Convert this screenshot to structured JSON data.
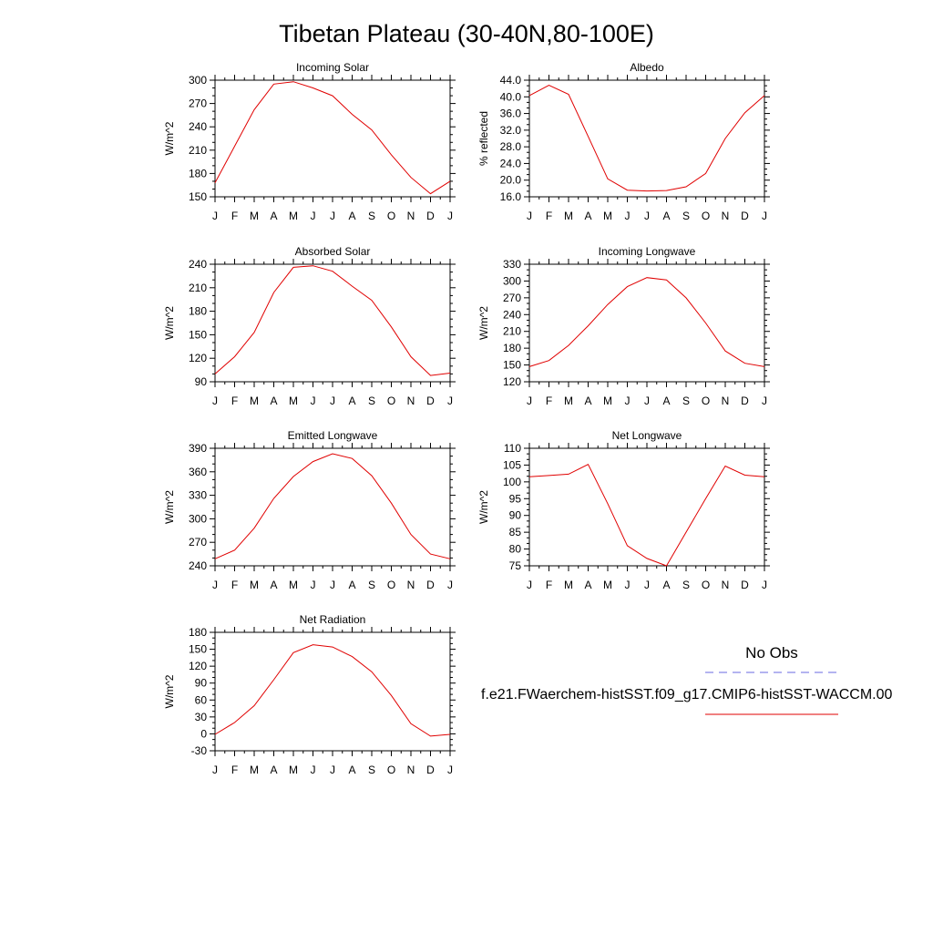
{
  "title": "Tibetan Plateau (30-40N,80-100E)",
  "months": [
    "J",
    "F",
    "M",
    "A",
    "M",
    "J",
    "J",
    "A",
    "S",
    "O",
    "N",
    "D",
    "J"
  ],
  "legend": {
    "obs_label": "No Obs",
    "model_label": "f.e21.FWaerchem-histSST.f09_g17.CMIP6-histSST-WACCM.00",
    "obs_color": "#6a6ae0",
    "model_color": "#e00000"
  },
  "chart_data": [
    {
      "type": "line",
      "title": "Incoming Solar",
      "ylabel": "W/m^2",
      "ylim": [
        150,
        300
      ],
      "yticks": [
        "150",
        "180",
        "210",
        "240",
        "270",
        "300"
      ],
      "series": [
        {
          "color": "#e00000",
          "values": [
            168,
            215,
            262,
            295,
            298,
            290,
            280,
            256,
            236,
            204,
            175,
            154,
            170
          ]
        }
      ]
    },
    {
      "type": "line",
      "title": "Albedo",
      "ylabel": "% reflected",
      "ylim": [
        16,
        44
      ],
      "yticks": [
        "16.0",
        "20.0",
        "24.0",
        "28.0",
        "32.0",
        "36.0",
        "40.0",
        "44.0"
      ],
      "series": [
        {
          "color": "#e00000",
          "values": [
            40.3,
            42.8,
            40.6,
            30.5,
            20.3,
            17.6,
            17.4,
            17.5,
            18.4,
            21.6,
            30.0,
            36.2,
            40.3
          ]
        }
      ]
    },
    {
      "type": "line",
      "title": "Absorbed Solar",
      "ylabel": "W/m^2",
      "ylim": [
        90,
        240
      ],
      "yticks": [
        "90",
        "120",
        "150",
        "180",
        "210",
        "240"
      ],
      "series": [
        {
          "color": "#e00000",
          "values": [
            100,
            122,
            153,
            204,
            236,
            238,
            231,
            212,
            194,
            160,
            122,
            98,
            101
          ]
        }
      ]
    },
    {
      "type": "line",
      "title": "Incoming Longwave",
      "ylabel": "W/m^2",
      "ylim": [
        120,
        330
      ],
      "yticks": [
        "120",
        "150",
        "180",
        "210",
        "240",
        "270",
        "300",
        "330"
      ],
      "series": [
        {
          "color": "#e00000",
          "values": [
            147,
            158,
            185,
            220,
            258,
            290,
            306,
            302,
            270,
            225,
            175,
            153,
            147
          ]
        }
      ]
    },
    {
      "type": "line",
      "title": "Emitted Longwave",
      "ylabel": "W/m^2",
      "ylim": [
        240,
        390
      ],
      "yticks": [
        "240",
        "270",
        "300",
        "330",
        "360",
        "390"
      ],
      "series": [
        {
          "color": "#e00000",
          "values": [
            249,
            260,
            288,
            326,
            354,
            373,
            383,
            377,
            355,
            320,
            280,
            255,
            249
          ]
        }
      ]
    },
    {
      "type": "line",
      "title": "Net Longwave",
      "ylabel": "W/m^2",
      "ylim": [
        75,
        110
      ],
      "yticks": [
        "75",
        "80",
        "85",
        "90",
        "95",
        "100",
        "105",
        "110"
      ],
      "series": [
        {
          "color": "#e00000",
          "values": [
            101.5,
            101.9,
            102.3,
            105.2,
            93.5,
            81.0,
            77.2,
            75.0,
            85.0,
            95.0,
            104.7,
            102.0,
            101.5
          ]
        }
      ]
    },
    {
      "type": "line",
      "title": "Net Radiation",
      "ylabel": "W/m^2",
      "ylim": [
        -30,
        180
      ],
      "yticks": [
        "-30",
        "0",
        "30",
        "60",
        "90",
        "120",
        "150",
        "180"
      ],
      "series": [
        {
          "color": "#e00000",
          "values": [
            -1,
            20,
            50,
            96,
            144,
            158,
            154,
            137,
            110,
            68,
            18,
            -4,
            -1
          ]
        }
      ]
    }
  ]
}
